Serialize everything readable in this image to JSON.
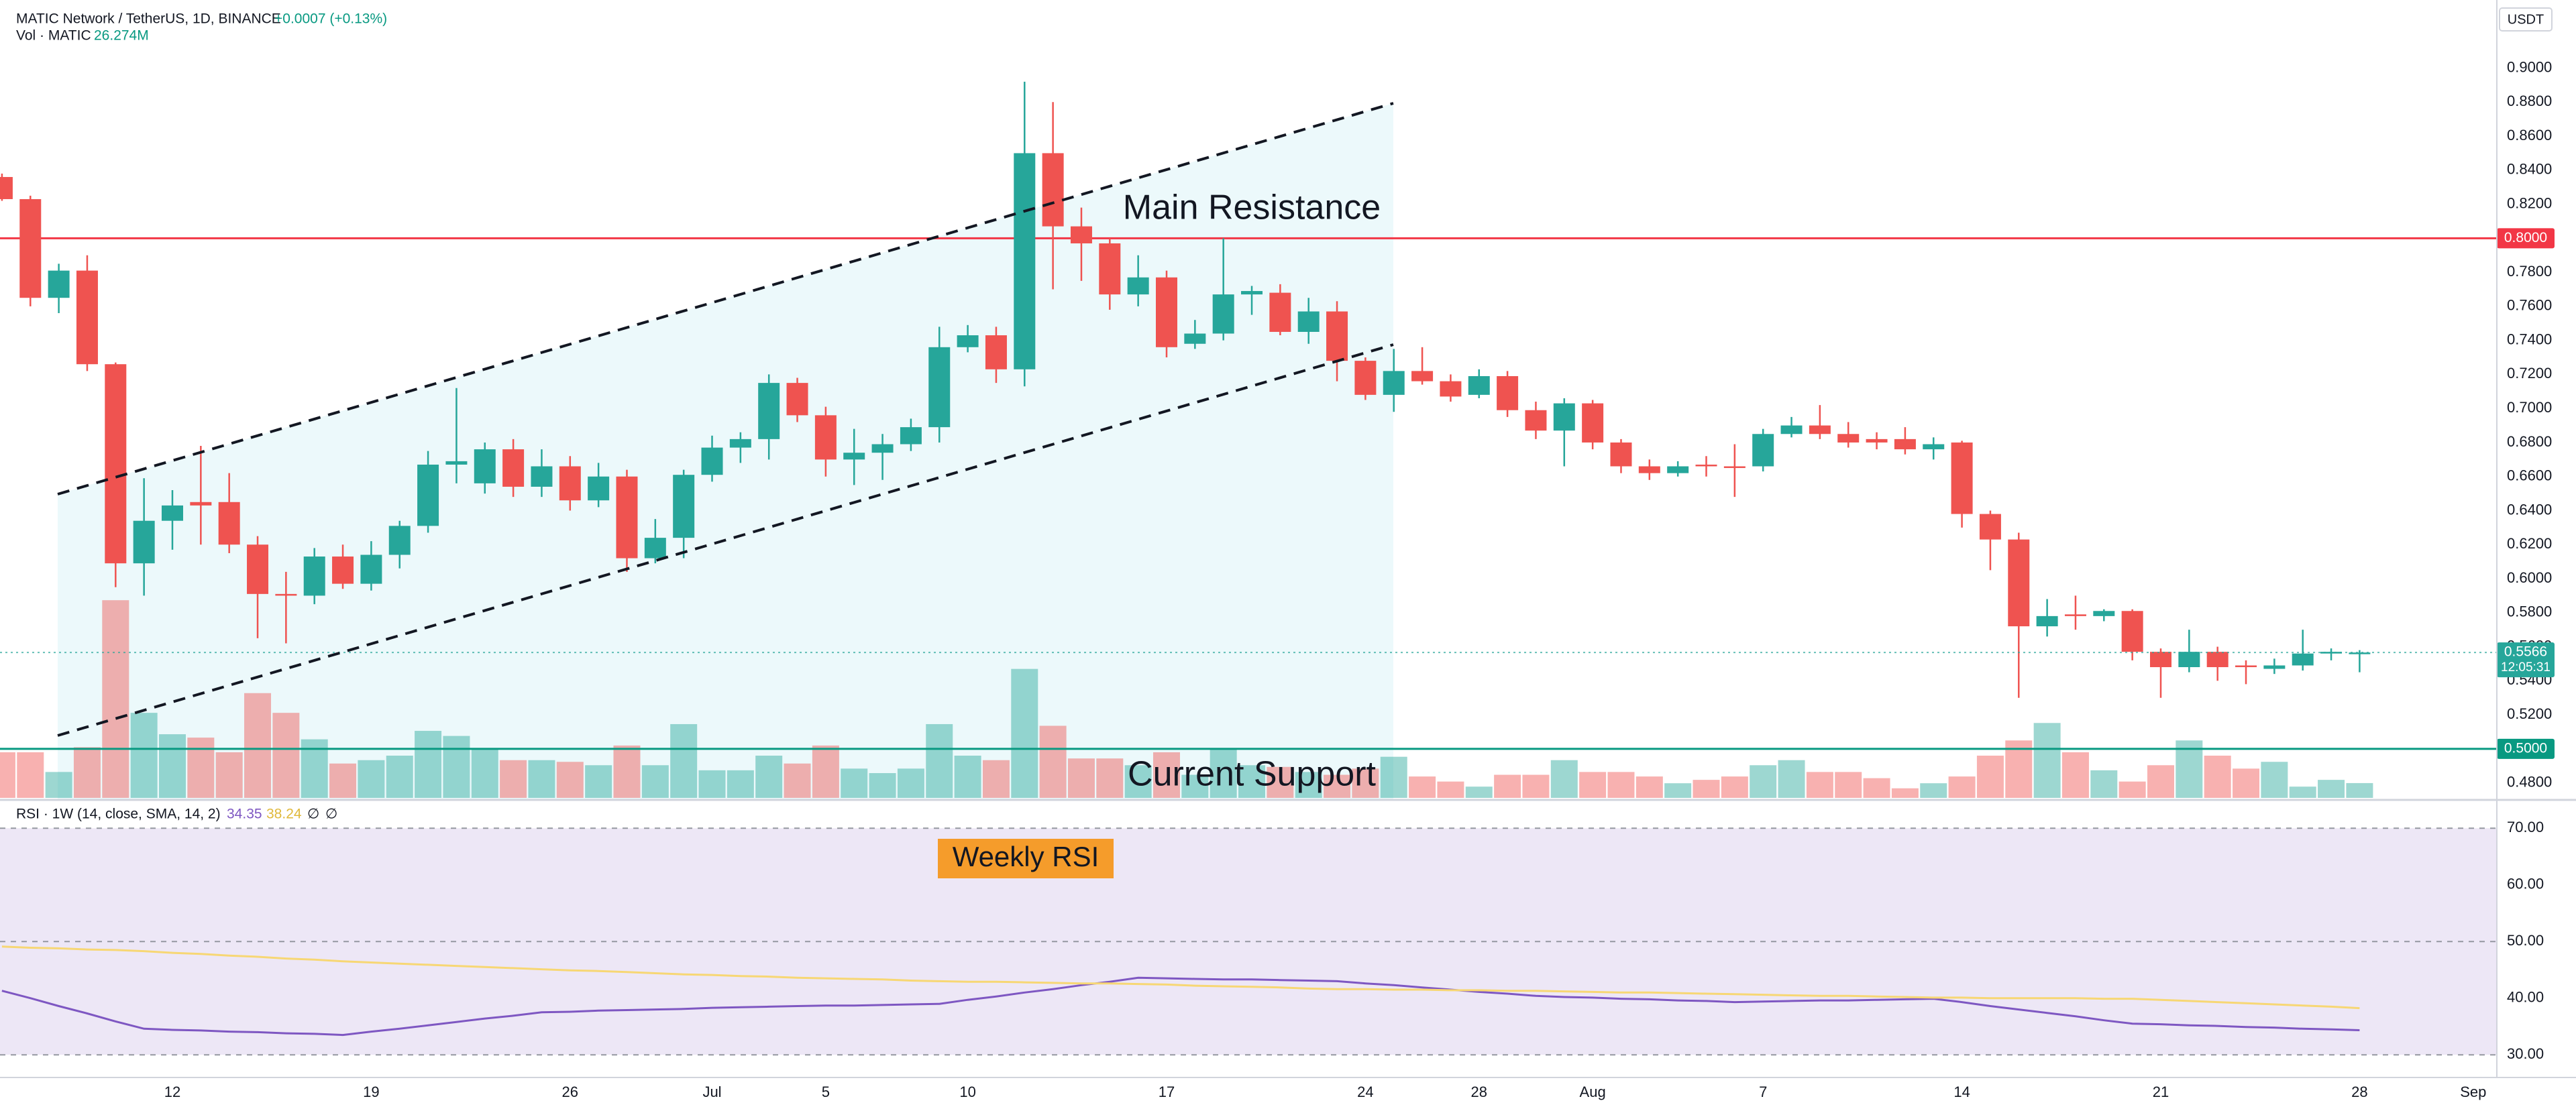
{
  "chart_data": [
    {
      "type": "candlestick",
      "title": "MATIC Network / TetherUS, 1D, BINANCE",
      "change": "+0.0007 (+0.13%)",
      "currency": "USDT",
      "up_color": "#26a69a",
      "down_color": "#ef5350",
      "categories": [
        null,
        null,
        null,
        null,
        null,
        null,
        "12",
        null,
        null,
        null,
        null,
        null,
        null,
        "19",
        null,
        null,
        null,
        null,
        null,
        null,
        "26",
        null,
        null,
        null,
        null,
        "Jul",
        null,
        null,
        null,
        "5",
        null,
        null,
        null,
        null,
        "10",
        null,
        null,
        null,
        null,
        null,
        null,
        "17",
        null,
        null,
        null,
        null,
        null,
        null,
        "24",
        null,
        null,
        null,
        "28",
        null,
        null,
        null,
        "Aug",
        null,
        null,
        null,
        null,
        null,
        "7",
        null,
        null,
        null,
        null,
        null,
        null,
        "14",
        null,
        null,
        null,
        null,
        null,
        null,
        "21",
        null,
        null,
        null,
        null,
        null,
        null,
        "28",
        null,
        null,
        null,
        "Sep"
      ],
      "open": [
        0.836,
        0.823,
        0.765,
        0.781,
        0.726,
        0.609,
        0.634,
        0.645,
        0.645,
        0.62,
        0.591,
        0.59,
        0.613,
        0.597,
        0.614,
        0.631,
        0.667,
        0.656,
        0.676,
        0.654,
        0.666,
        0.646,
        0.66,
        0.612,
        0.624,
        0.661,
        0.677,
        0.682,
        0.715,
        0.696,
        0.67,
        0.674,
        0.679,
        0.689,
        0.736,
        0.743,
        0.723,
        0.85,
        0.807,
        0.797,
        0.767,
        0.777,
        0.738,
        0.744,
        0.767,
        0.768,
        0.745,
        0.757,
        0.728,
        0.708,
        0.722,
        0.716,
        0.708,
        0.719,
        0.699,
        0.687,
        0.703,
        0.68,
        0.666,
        0.662,
        0.667,
        0.666,
        0.666,
        0.685,
        0.69,
        0.685,
        0.682,
        0.682,
        0.676,
        0.68,
        0.638,
        0.623,
        0.572,
        0.579,
        0.578,
        0.581,
        0.557,
        0.548,
        0.557,
        0.549,
        0.547,
        0.549,
        0.556,
        0.556,
        null,
        null,
        null,
        null
      ],
      "high": [
        0.838,
        0.825,
        0.785,
        0.79,
        0.727,
        0.659,
        0.652,
        0.678,
        0.662,
        0.625,
        0.604,
        0.618,
        0.62,
        0.622,
        0.634,
        0.675,
        0.712,
        0.68,
        0.682,
        0.676,
        0.672,
        0.668,
        0.664,
        0.635,
        0.664,
        0.684,
        0.686,
        0.72,
        0.718,
        0.701,
        0.688,
        0.685,
        0.694,
        0.748,
        0.749,
        0.748,
        0.892,
        0.88,
        0.818,
        0.8,
        0.79,
        0.781,
        0.752,
        0.8,
        0.772,
        0.773,
        0.765,
        0.763,
        0.73,
        0.735,
        0.736,
        0.72,
        0.723,
        0.722,
        0.704,
        0.706,
        0.705,
        0.682,
        0.67,
        0.669,
        0.672,
        0.679,
        0.688,
        0.695,
        0.702,
        0.692,
        0.686,
        0.689,
        0.683,
        0.681,
        0.64,
        0.627,
        0.588,
        0.59,
        0.582,
        0.582,
        0.559,
        0.57,
        0.56,
        0.552,
        0.553,
        0.57,
        0.559,
        0.558,
        null,
        null,
        null,
        null
      ],
      "low": [
        0.822,
        0.76,
        0.756,
        0.722,
        0.595,
        0.59,
        0.617,
        0.62,
        0.615,
        0.565,
        0.562,
        0.585,
        0.594,
        0.593,
        0.606,
        0.627,
        0.656,
        0.65,
        0.648,
        0.648,
        0.64,
        0.642,
        0.604,
        0.609,
        0.612,
        0.657,
        0.668,
        0.67,
        0.692,
        0.66,
        0.655,
        0.658,
        0.675,
        0.68,
        0.733,
        0.715,
        0.713,
        0.77,
        0.775,
        0.758,
        0.76,
        0.73,
        0.735,
        0.74,
        0.755,
        0.743,
        0.738,
        0.716,
        0.705,
        0.698,
        0.714,
        0.704,
        0.706,
        0.695,
        0.682,
        0.666,
        0.676,
        0.662,
        0.658,
        0.66,
        0.66,
        0.648,
        0.663,
        0.683,
        0.682,
        0.677,
        0.676,
        0.673,
        0.67,
        0.63,
        0.605,
        0.53,
        0.566,
        0.57,
        0.575,
        0.552,
        0.53,
        0.545,
        0.54,
        0.538,
        0.544,
        0.546,
        0.552,
        0.545,
        null,
        null,
        null,
        null
      ],
      "close": [
        0.823,
        0.765,
        0.781,
        0.726,
        0.609,
        0.634,
        0.643,
        0.643,
        0.62,
        0.591,
        0.59,
        0.613,
        0.597,
        0.614,
        0.631,
        0.667,
        0.669,
        0.676,
        0.654,
        0.666,
        0.646,
        0.66,
        0.612,
        0.624,
        0.661,
        0.677,
        0.682,
        0.715,
        0.696,
        0.67,
        0.674,
        0.679,
        0.689,
        0.736,
        0.743,
        0.723,
        0.85,
        0.807,
        0.797,
        0.767,
        0.777,
        0.736,
        0.744,
        0.767,
        0.769,
        0.745,
        0.757,
        0.728,
        0.708,
        0.722,
        0.716,
        0.707,
        0.719,
        0.699,
        0.687,
        0.703,
        0.68,
        0.666,
        0.662,
        0.666,
        0.666,
        0.665,
        0.685,
        0.69,
        0.685,
        0.68,
        0.68,
        0.676,
        0.679,
        0.638,
        0.623,
        0.572,
        0.578,
        0.578,
        0.581,
        0.557,
        0.548,
        0.557,
        0.548,
        0.548,
        0.549,
        0.556,
        0.557,
        0.5566,
        null,
        null,
        null,
        null
      ],
      "last_price_label": "0.5566",
      "countdown": "12:05:31",
      "ylim": [
        0.47,
        0.94
      ],
      "yticks": [
        {
          "value": 0.48,
          "label": "0.4800"
        },
        {
          "value": 0.5,
          "label": "0.5000"
        },
        {
          "value": 0.52,
          "label": "0.5200"
        },
        {
          "value": 0.54,
          "label": "0.5400"
        },
        {
          "value": 0.56,
          "label": "0.5600"
        },
        {
          "value": 0.58,
          "label": "0.5800"
        },
        {
          "value": 0.6,
          "label": "0.6000"
        },
        {
          "value": 0.62,
          "label": "0.6200"
        },
        {
          "value": 0.64,
          "label": "0.6400"
        },
        {
          "value": 0.66,
          "label": "0.6600"
        },
        {
          "value": 0.68,
          "label": "0.6800"
        },
        {
          "value": 0.7,
          "label": "0.7000"
        },
        {
          "value": 0.72,
          "label": "0.7200"
        },
        {
          "value": 0.74,
          "label": "0.7400"
        },
        {
          "value": 0.76,
          "label": "0.7600"
        },
        {
          "value": 0.78,
          "label": "0.7800"
        },
        {
          "value": 0.8,
          "label": "0.8000"
        },
        {
          "value": 0.82,
          "label": "0.8200"
        },
        {
          "value": 0.84,
          "label": "0.8400"
        },
        {
          "value": 0.86,
          "label": "0.8600"
        },
        {
          "value": 0.88,
          "label": "0.8800"
        },
        {
          "value": 0.9,
          "label": "0.9000"
        }
      ],
      "hlines": [
        {
          "value": 0.8,
          "label": "0.8000",
          "color": "#f23645"
        },
        {
          "value": 0.5,
          "label": "0.5000",
          "color": "#089981"
        }
      ],
      "annotations": [
        "Main Resistance",
        "Current Support"
      ],
      "volume": {
        "name": "Vol · MATIC",
        "last_label": "26.274M",
        "vlim": [
          0,
          600
        ],
        "values": [
          81,
          81,
          46,
          90,
          351,
          151,
          113,
          107,
          81,
          186,
          151,
          104,
          61,
          67,
          75,
          119,
          110,
          87,
          67,
          67,
          64,
          58,
          93,
          58,
          131,
          49,
          49,
          75,
          61,
          93,
          52,
          44,
          52,
          131,
          75,
          67,
          229,
          128,
          70,
          70,
          58,
          81,
          41,
          87,
          58,
          55,
          46,
          41,
          52,
          73,
          38,
          29,
          20,
          41,
          41,
          67,
          46,
          46,
          38,
          26,
          32,
          38,
          58,
          67,
          46,
          46,
          35,
          17,
          26,
          38,
          75,
          102,
          133,
          81,
          49,
          29,
          58,
          102,
          75,
          52,
          64,
          20,
          32,
          26.274,
          null,
          null,
          null,
          null
        ]
      }
    },
    {
      "type": "line",
      "title": "RSI · 1W (14, close, SMA, 14, 2)",
      "extra_labels": [
        "∅",
        "∅"
      ],
      "annotation": "Weekly RSI",
      "ylim": [
        26,
        75
      ],
      "yticks": [
        {
          "value": 30,
          "label": "30.00"
        },
        {
          "value": 40,
          "label": "40.00"
        },
        {
          "value": 50,
          "label": "50.00"
        },
        {
          "value": 60,
          "label": "60.00"
        },
        {
          "value": 70,
          "label": "70.00"
        }
      ],
      "band_lines": [
        70,
        50,
        30
      ],
      "band_color": "#ede7f6",
      "series": [
        {
          "color": "#7e57c2",
          "values": [
            41.3,
            40.0,
            38.6,
            37.3,
            35.9,
            34.6,
            34.4,
            34.3,
            34.1,
            34.0,
            33.8,
            33.7,
            33.5,
            34.1,
            34.6,
            35.2,
            35.8,
            36.4,
            36.9,
            37.5,
            37.6,
            37.8,
            37.9,
            38.0,
            38.1,
            38.3,
            38.4,
            38.5,
            38.6,
            38.7,
            38.7,
            38.8,
            38.9,
            39.0,
            39.7,
            40.3,
            41.0,
            41.6,
            42.3,
            42.9,
            43.6,
            43.5,
            43.4,
            43.3,
            43.3,
            43.2,
            43.1,
            43.0,
            42.6,
            42.3,
            41.9,
            41.5,
            41.1,
            40.8,
            40.4,
            40.2,
            40.1,
            39.9,
            39.8,
            39.6,
            39.5,
            39.3,
            39.4,
            39.5,
            39.6,
            39.6,
            39.7,
            39.8,
            39.9,
            39.3,
            38.6,
            38.0,
            37.4,
            36.8,
            36.1,
            35.5,
            35.4,
            35.2,
            35.1,
            34.9,
            34.8,
            34.6,
            34.5,
            34.35,
            null,
            null,
            null,
            null
          ]
        },
        {
          "color": "#f7d774",
          "values": [
            49.1,
            48.9,
            48.8,
            48.6,
            48.5,
            48.3,
            48.0,
            47.8,
            47.5,
            47.3,
            47.0,
            46.8,
            46.5,
            46.3,
            46.1,
            45.9,
            45.7,
            45.5,
            45.3,
            45.1,
            44.9,
            44.8,
            44.6,
            44.4,
            44.2,
            44.1,
            43.9,
            43.8,
            43.6,
            43.5,
            43.4,
            43.3,
            43.1,
            43.0,
            42.9,
            42.9,
            42.8,
            42.7,
            42.6,
            42.6,
            42.5,
            42.4,
            42.2,
            42.1,
            42.0,
            41.9,
            41.7,
            41.6,
            41.6,
            41.5,
            41.5,
            41.4,
            41.4,
            41.3,
            41.3,
            41.2,
            41.1,
            41.0,
            41.0,
            40.9,
            40.8,
            40.7,
            40.6,
            40.5,
            40.4,
            40.4,
            40.3,
            40.2,
            40.1,
            40.1,
            40.0,
            40.0,
            40.0,
            40.0,
            39.9,
            39.9,
            39.7,
            39.5,
            39.3,
            39.1,
            38.9,
            38.7,
            38.5,
            38.24,
            null,
            null,
            null,
            null
          ]
        }
      ]
    }
  ]
}
